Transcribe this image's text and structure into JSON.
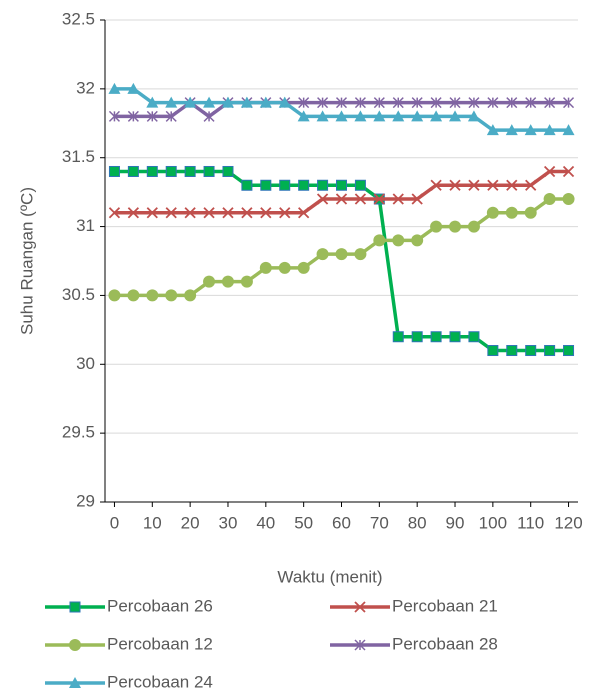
{
  "chart_data": {
    "type": "line",
    "x_label": "Waktu (menit)",
    "y_label": "Suhu Ruangan (ºC)",
    "x": [
      0,
      5,
      10,
      15,
      20,
      25,
      30,
      35,
      40,
      45,
      50,
      55,
      60,
      65,
      70,
      75,
      80,
      85,
      90,
      95,
      100,
      105,
      110,
      115,
      120
    ],
    "xlim": [
      -2.5,
      122.5
    ],
    "xticks": [
      0,
      10,
      20,
      30,
      40,
      50,
      60,
      70,
      80,
      90,
      100,
      110,
      120
    ],
    "ylim": [
      29,
      32.5
    ],
    "yticks": [
      29,
      29.5,
      30,
      30.5,
      31,
      31.5,
      32,
      32.5
    ],
    "grid": true,
    "series": [
      {
        "name": "Percobaan 26",
        "color": "#00b050",
        "marker": "square",
        "values": [
          31.4,
          31.4,
          31.4,
          31.4,
          31.4,
          31.4,
          31.4,
          31.3,
          31.3,
          31.3,
          31.3,
          31.3,
          31.3,
          31.3,
          31.2,
          30.2,
          30.2,
          30.2,
          30.2,
          30.2,
          30.1,
          30.1,
          30.1,
          30.1,
          30.1
        ]
      },
      {
        "name": "Percobaan 21",
        "color": "#c0504d",
        "marker": "x",
        "values": [
          31.1,
          31.1,
          31.1,
          31.1,
          31.1,
          31.1,
          31.1,
          31.1,
          31.1,
          31.1,
          31.1,
          31.2,
          31.2,
          31.2,
          31.2,
          31.2,
          31.2,
          31.3,
          31.3,
          31.3,
          31.3,
          31.3,
          31.3,
          31.4,
          31.4
        ]
      },
      {
        "name": "Percobaan 12",
        "color": "#9bbb59",
        "marker": "circle",
        "values": [
          30.5,
          30.5,
          30.5,
          30.5,
          30.5,
          30.6,
          30.6,
          30.6,
          30.7,
          30.7,
          30.7,
          30.8,
          30.8,
          30.8,
          30.9,
          30.9,
          30.9,
          31.0,
          31.0,
          31.0,
          31.1,
          31.1,
          31.1,
          31.2,
          31.2
        ]
      },
      {
        "name": "Percobaan 28",
        "color": "#8064a2",
        "marker": "star",
        "values": [
          31.8,
          31.8,
          31.8,
          31.8,
          31.9,
          31.8,
          31.9,
          31.9,
          31.9,
          31.9,
          31.9,
          31.9,
          31.9,
          31.9,
          31.9,
          31.9,
          31.9,
          31.9,
          31.9,
          31.9,
          31.9,
          31.9,
          31.9,
          31.9,
          31.9
        ]
      },
      {
        "name": "Percobaan 24",
        "color": "#4bacc6",
        "marker": "triangle",
        "values": [
          32,
          32,
          31.9,
          31.9,
          31.9,
          31.9,
          31.9,
          31.9,
          31.9,
          31.9,
          31.8,
          31.8,
          31.8,
          31.8,
          31.8,
          31.8,
          31.8,
          31.8,
          31.8,
          31.8,
          31.7,
          31.7,
          31.7,
          31.7,
          31.7
        ]
      }
    ]
  }
}
